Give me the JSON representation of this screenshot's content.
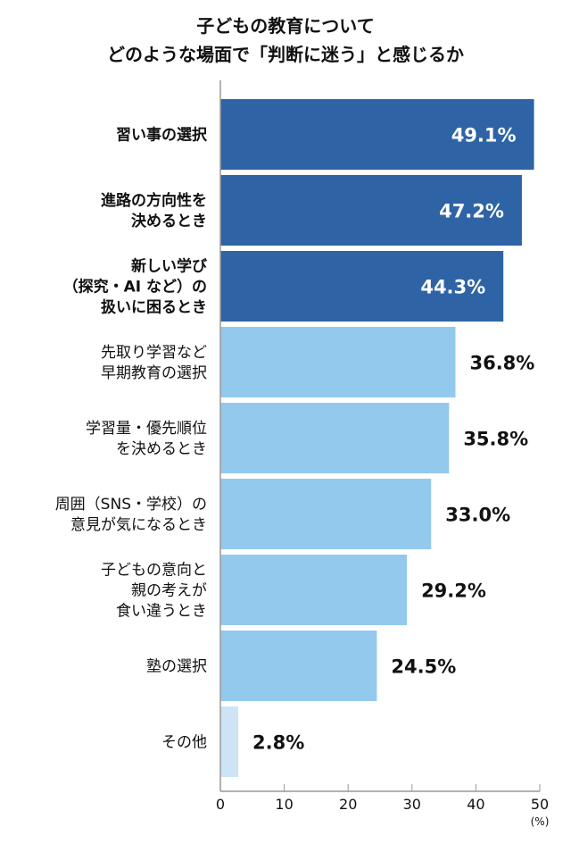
{
  "chart_data": {
    "type": "bar",
    "orientation": "horizontal",
    "title": [
      "子どもの教育について",
      "どのような場面で「判断に迷う」と感じるか"
    ],
    "categories": [
      [
        "習い事の選択"
      ],
      [
        "進路の方向性を",
        "決めるとき"
      ],
      [
        "新しい学び",
        "（探究・AI など）の",
        "扱いに困るとき"
      ],
      [
        "先取り学習など",
        "早期教育の選択"
      ],
      [
        "学習量・優先順位",
        "を決めるとき"
      ],
      [
        "周囲（SNS・学校）の",
        "意見が気になるとき"
      ],
      [
        "子どもの意向と",
        "親の考えが",
        "食い違うとき"
      ],
      [
        "塾の選択"
      ],
      [
        "その他"
      ]
    ],
    "values": [
      49.1,
      47.2,
      44.3,
      36.8,
      35.8,
      33.0,
      29.2,
      24.5,
      2.8
    ],
    "value_labels": [
      "49.1%",
      "47.2%",
      "44.3%",
      "36.8%",
      "35.8%",
      "33.0%",
      "29.2%",
      "24.5%",
      "2.8%"
    ],
    "bar_colors": [
      "#2e64a6",
      "#2e64a6",
      "#2e64a6",
      "#93c9ec",
      "#93c9ec",
      "#93c9ec",
      "#93c9ec",
      "#93c9ec",
      "#cde4f7"
    ],
    "xlim": [
      0,
      50
    ],
    "xticks": [
      0,
      10,
      20,
      30,
      40,
      50
    ],
    "xunit": "(%)",
    "grid": false,
    "legend": "none"
  }
}
